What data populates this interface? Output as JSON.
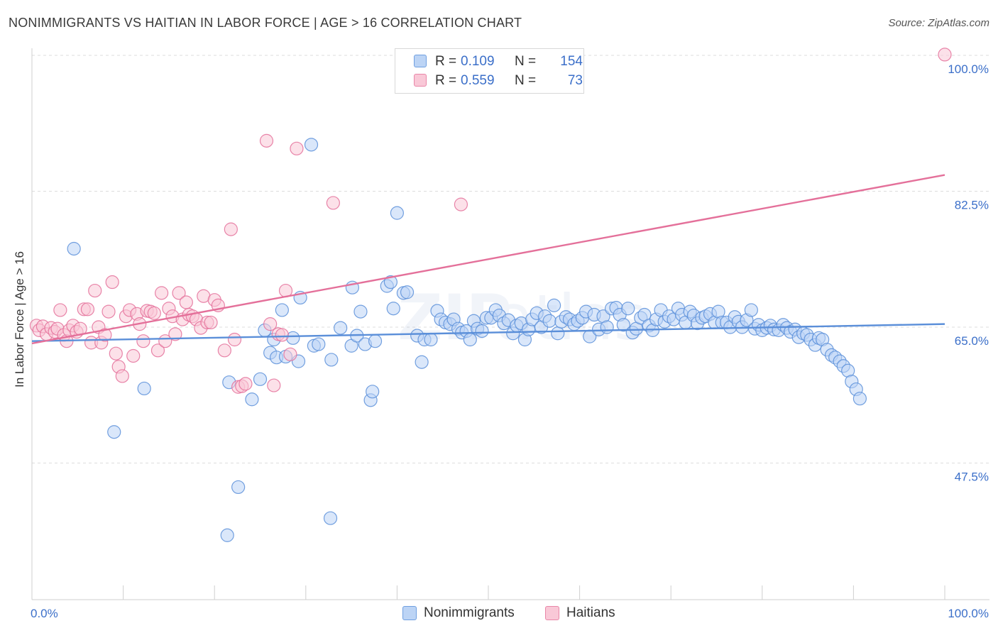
{
  "title": "NONIMMIGRANTS VS HAITIAN IN LABOR FORCE | AGE > 16 CORRELATION CHART",
  "source": "Source: ZipAtlas.com",
  "legend": {
    "rows": [
      {
        "r_label": "R =",
        "r_value": "0.109",
        "n_label": "N =",
        "n_value": "154",
        "color": "#6f9fe0",
        "fill": "#bcd4f5"
      },
      {
        "r_label": "R =",
        "r_value": "0.559",
        "n_label": "N =",
        "n_value": "73",
        "color": "#e986a8",
        "fill": "#f9c8d7"
      }
    ]
  },
  "bottom_legend": [
    {
      "label": "Nonimmigrants",
      "color": "#6f9fe0",
      "fill": "#bcd4f5"
    },
    {
      "label": "Haitians",
      "color": "#e986a8",
      "fill": "#f9c8d7"
    }
  ],
  "chart_data": {
    "type": "scatter",
    "title": "NONIMMIGRANTS VS HAITIAN IN LABOR FORCE | AGE > 16 CORRELATION CHART",
    "xlabel": "",
    "ylabel": "In Labor Force | Age > 16",
    "xlim": [
      0,
      100
    ],
    "ylim": [
      32.5,
      102
    ],
    "x_tick_labels": [
      {
        "value": 0,
        "label": "0.0%"
      },
      {
        "value": 100,
        "label": "100.0%"
      }
    ],
    "y_tick_labels": [
      {
        "value": 100,
        "label": "100.0%"
      },
      {
        "value": 82.5,
        "label": "82.5%"
      },
      {
        "value": 65,
        "label": "65.0%"
      },
      {
        "value": 47.5,
        "label": "47.5%"
      }
    ],
    "grid": "horizontal dashed",
    "legend_position": "top-center",
    "series": [
      {
        "name": "Nonimmigrants",
        "color": "#5b8fd9",
        "fill": "#bcd4f5",
        "trend": [
          [
            0,
            63.2
          ],
          [
            100,
            65.4
          ]
        ],
        "points": [
          [
            4.6,
            75.1
          ],
          [
            9.0,
            51.5
          ],
          [
            12.3,
            57.1
          ],
          [
            21.4,
            38.2
          ],
          [
            21.6,
            57.9
          ],
          [
            22.6,
            44.4
          ],
          [
            24.1,
            55.7
          ],
          [
            25.0,
            58.3
          ],
          [
            25.5,
            64.6
          ],
          [
            26.1,
            61.7
          ],
          [
            26.5,
            63.4
          ],
          [
            26.8,
            61.1
          ],
          [
            27.4,
            67.2
          ],
          [
            27.8,
            61.2
          ],
          [
            28.6,
            63.6
          ],
          [
            29.2,
            60.6
          ],
          [
            29.4,
            68.8
          ],
          [
            30.6,
            88.5
          ],
          [
            30.9,
            62.6
          ],
          [
            31.4,
            62.8
          ],
          [
            32.7,
            40.4
          ],
          [
            32.8,
            60.8
          ],
          [
            33.8,
            64.9
          ],
          [
            35.0,
            62.6
          ],
          [
            35.1,
            70.1
          ],
          [
            35.6,
            63.9
          ],
          [
            36.0,
            67.0
          ],
          [
            36.5,
            62.8
          ],
          [
            37.1,
            55.6
          ],
          [
            37.3,
            56.7
          ],
          [
            37.6,
            63.2
          ],
          [
            38.9,
            70.3
          ],
          [
            39.3,
            70.8
          ],
          [
            39.6,
            67.4
          ],
          [
            40.0,
            79.7
          ],
          [
            40.7,
            69.4
          ],
          [
            41.1,
            69.5
          ],
          [
            42.2,
            63.9
          ],
          [
            42.7,
            60.5
          ],
          [
            43.0,
            63.4
          ],
          [
            43.7,
            63.4
          ],
          [
            44.4,
            67.1
          ],
          [
            44.8,
            66.0
          ],
          [
            45.3,
            65.6
          ],
          [
            45.8,
            65.4
          ],
          [
            46.2,
            66.0
          ],
          [
            46.7,
            64.8
          ],
          [
            47.1,
            64.3
          ],
          [
            47.6,
            64.5
          ],
          [
            48.0,
            63.4
          ],
          [
            48.4,
            65.8
          ],
          [
            48.8,
            64.8
          ],
          [
            49.3,
            64.5
          ],
          [
            49.8,
            66.2
          ],
          [
            50.3,
            66.2
          ],
          [
            50.8,
            67.2
          ],
          [
            51.2,
            66.5
          ],
          [
            51.7,
            65.5
          ],
          [
            52.2,
            65.9
          ],
          [
            52.7,
            64.2
          ],
          [
            53.1,
            65.2
          ],
          [
            53.6,
            65.5
          ],
          [
            54.0,
            63.4
          ],
          [
            54.4,
            64.7
          ],
          [
            54.8,
            66.0
          ],
          [
            55.3,
            66.8
          ],
          [
            55.8,
            65.0
          ],
          [
            56.2,
            66.4
          ],
          [
            56.7,
            65.8
          ],
          [
            57.2,
            67.8
          ],
          [
            57.6,
            64.2
          ],
          [
            58.0,
            65.7
          ],
          [
            58.5,
            66.3
          ],
          [
            58.9,
            66.0
          ],
          [
            59.4,
            65.4
          ],
          [
            59.8,
            65.8
          ],
          [
            60.3,
            66.2
          ],
          [
            60.7,
            67.0
          ],
          [
            61.1,
            63.8
          ],
          [
            61.6,
            66.6
          ],
          [
            62.1,
            64.7
          ],
          [
            62.6,
            66.4
          ],
          [
            63.0,
            65.0
          ],
          [
            63.5,
            67.4
          ],
          [
            64.0,
            67.5
          ],
          [
            64.4,
            66.6
          ],
          [
            64.8,
            65.3
          ],
          [
            65.3,
            67.4
          ],
          [
            65.8,
            64.3
          ],
          [
            66.2,
            64.8
          ],
          [
            66.7,
            66.2
          ],
          [
            67.1,
            66.6
          ],
          [
            67.6,
            65.2
          ],
          [
            68.0,
            64.6
          ],
          [
            68.4,
            66.0
          ],
          [
            68.9,
            67.2
          ],
          [
            69.3,
            65.7
          ],
          [
            69.8,
            66.4
          ],
          [
            70.3,
            66.0
          ],
          [
            70.8,
            67.4
          ],
          [
            71.2,
            66.6
          ],
          [
            71.6,
            65.6
          ],
          [
            72.1,
            67.0
          ],
          [
            72.5,
            66.5
          ],
          [
            72.9,
            65.5
          ],
          [
            73.4,
            66.2
          ],
          [
            73.8,
            66.4
          ],
          [
            74.3,
            66.7
          ],
          [
            74.8,
            65.6
          ],
          [
            75.2,
            67.0
          ],
          [
            75.6,
            65.6
          ],
          [
            76.1,
            65.6
          ],
          [
            76.5,
            65.0
          ],
          [
            77.0,
            66.3
          ],
          [
            77.4,
            65.7
          ],
          [
            77.8,
            65.0
          ],
          [
            78.3,
            65.9
          ],
          [
            78.8,
            67.2
          ],
          [
            79.2,
            64.8
          ],
          [
            79.6,
            65.3
          ],
          [
            80.0,
            64.6
          ],
          [
            80.5,
            64.9
          ],
          [
            80.9,
            65.2
          ],
          [
            81.3,
            64.7
          ],
          [
            81.8,
            64.6
          ],
          [
            82.3,
            65.3
          ],
          [
            82.7,
            64.9
          ],
          [
            83.1,
            64.4
          ],
          [
            83.6,
            64.7
          ],
          [
            84.0,
            63.7
          ],
          [
            84.5,
            64.2
          ],
          [
            84.9,
            64.0
          ],
          [
            85.3,
            63.4
          ],
          [
            85.8,
            62.7
          ],
          [
            86.2,
            63.6
          ],
          [
            86.6,
            63.4
          ],
          [
            87.1,
            62.1
          ],
          [
            87.6,
            61.4
          ],
          [
            88.0,
            61.1
          ],
          [
            88.5,
            60.6
          ],
          [
            88.9,
            60.0
          ],
          [
            89.4,
            59.4
          ],
          [
            89.8,
            58.0
          ],
          [
            90.3,
            57.0
          ],
          [
            90.7,
            55.8
          ]
        ]
      },
      {
        "name": "Haitians",
        "color": "#e4709a",
        "fill": "#f9c8d7",
        "trend": [
          [
            0,
            62.9
          ],
          [
            100,
            84.6
          ]
        ],
        "points": [
          [
            0.5,
            65.2
          ],
          [
            0.8,
            64.6
          ],
          [
            1.2,
            65.1
          ],
          [
            1.6,
            64.1
          ],
          [
            2.1,
            64.9
          ],
          [
            2.5,
            64.4
          ],
          [
            2.8,
            64.8
          ],
          [
            3.1,
            67.2
          ],
          [
            3.5,
            64.0
          ],
          [
            3.8,
            63.2
          ],
          [
            4.1,
            64.6
          ],
          [
            4.5,
            65.2
          ],
          [
            4.9,
            64.4
          ],
          [
            5.3,
            64.8
          ],
          [
            5.7,
            67.3
          ],
          [
            6.1,
            67.3
          ],
          [
            6.5,
            63.0
          ],
          [
            6.9,
            69.7
          ],
          [
            7.3,
            65.0
          ],
          [
            7.6,
            63.0
          ],
          [
            8.0,
            64.0
          ],
          [
            8.4,
            67.0
          ],
          [
            8.8,
            70.8
          ],
          [
            9.2,
            61.6
          ],
          [
            9.5,
            59.9
          ],
          [
            9.9,
            58.7
          ],
          [
            10.3,
            66.4
          ],
          [
            10.7,
            67.2
          ],
          [
            11.1,
            61.3
          ],
          [
            11.5,
            66.7
          ],
          [
            11.8,
            65.4
          ],
          [
            12.2,
            63.2
          ],
          [
            12.6,
            67.1
          ],
          [
            13.0,
            67.0
          ],
          [
            13.4,
            66.8
          ],
          [
            13.8,
            62.0
          ],
          [
            14.2,
            69.4
          ],
          [
            14.6,
            63.2
          ],
          [
            15.0,
            67.4
          ],
          [
            15.4,
            66.4
          ],
          [
            15.7,
            64.1
          ],
          [
            16.1,
            69.4
          ],
          [
            16.5,
            66.0
          ],
          [
            16.9,
            68.2
          ],
          [
            17.2,
            66.6
          ],
          [
            17.6,
            66.4
          ],
          [
            18.0,
            66.0
          ],
          [
            18.5,
            64.9
          ],
          [
            18.8,
            69.0
          ],
          [
            19.2,
            65.6
          ],
          [
            19.6,
            65.6
          ],
          [
            20.0,
            68.5
          ],
          [
            20.4,
            67.8
          ],
          [
            21.1,
            62.0
          ],
          [
            21.8,
            77.6
          ],
          [
            22.2,
            63.4
          ],
          [
            22.6,
            57.3
          ],
          [
            23.0,
            57.4
          ],
          [
            23.4,
            57.7
          ],
          [
            25.7,
            89.0
          ],
          [
            26.1,
            65.4
          ],
          [
            26.5,
            57.5
          ],
          [
            27.0,
            64.1
          ],
          [
            27.4,
            64.0
          ],
          [
            27.8,
            69.7
          ],
          [
            28.3,
            61.5
          ],
          [
            29.0,
            88.0
          ],
          [
            33.0,
            81.0
          ],
          [
            47.0,
            80.8
          ],
          [
            100,
            100.1
          ]
        ]
      }
    ]
  }
}
